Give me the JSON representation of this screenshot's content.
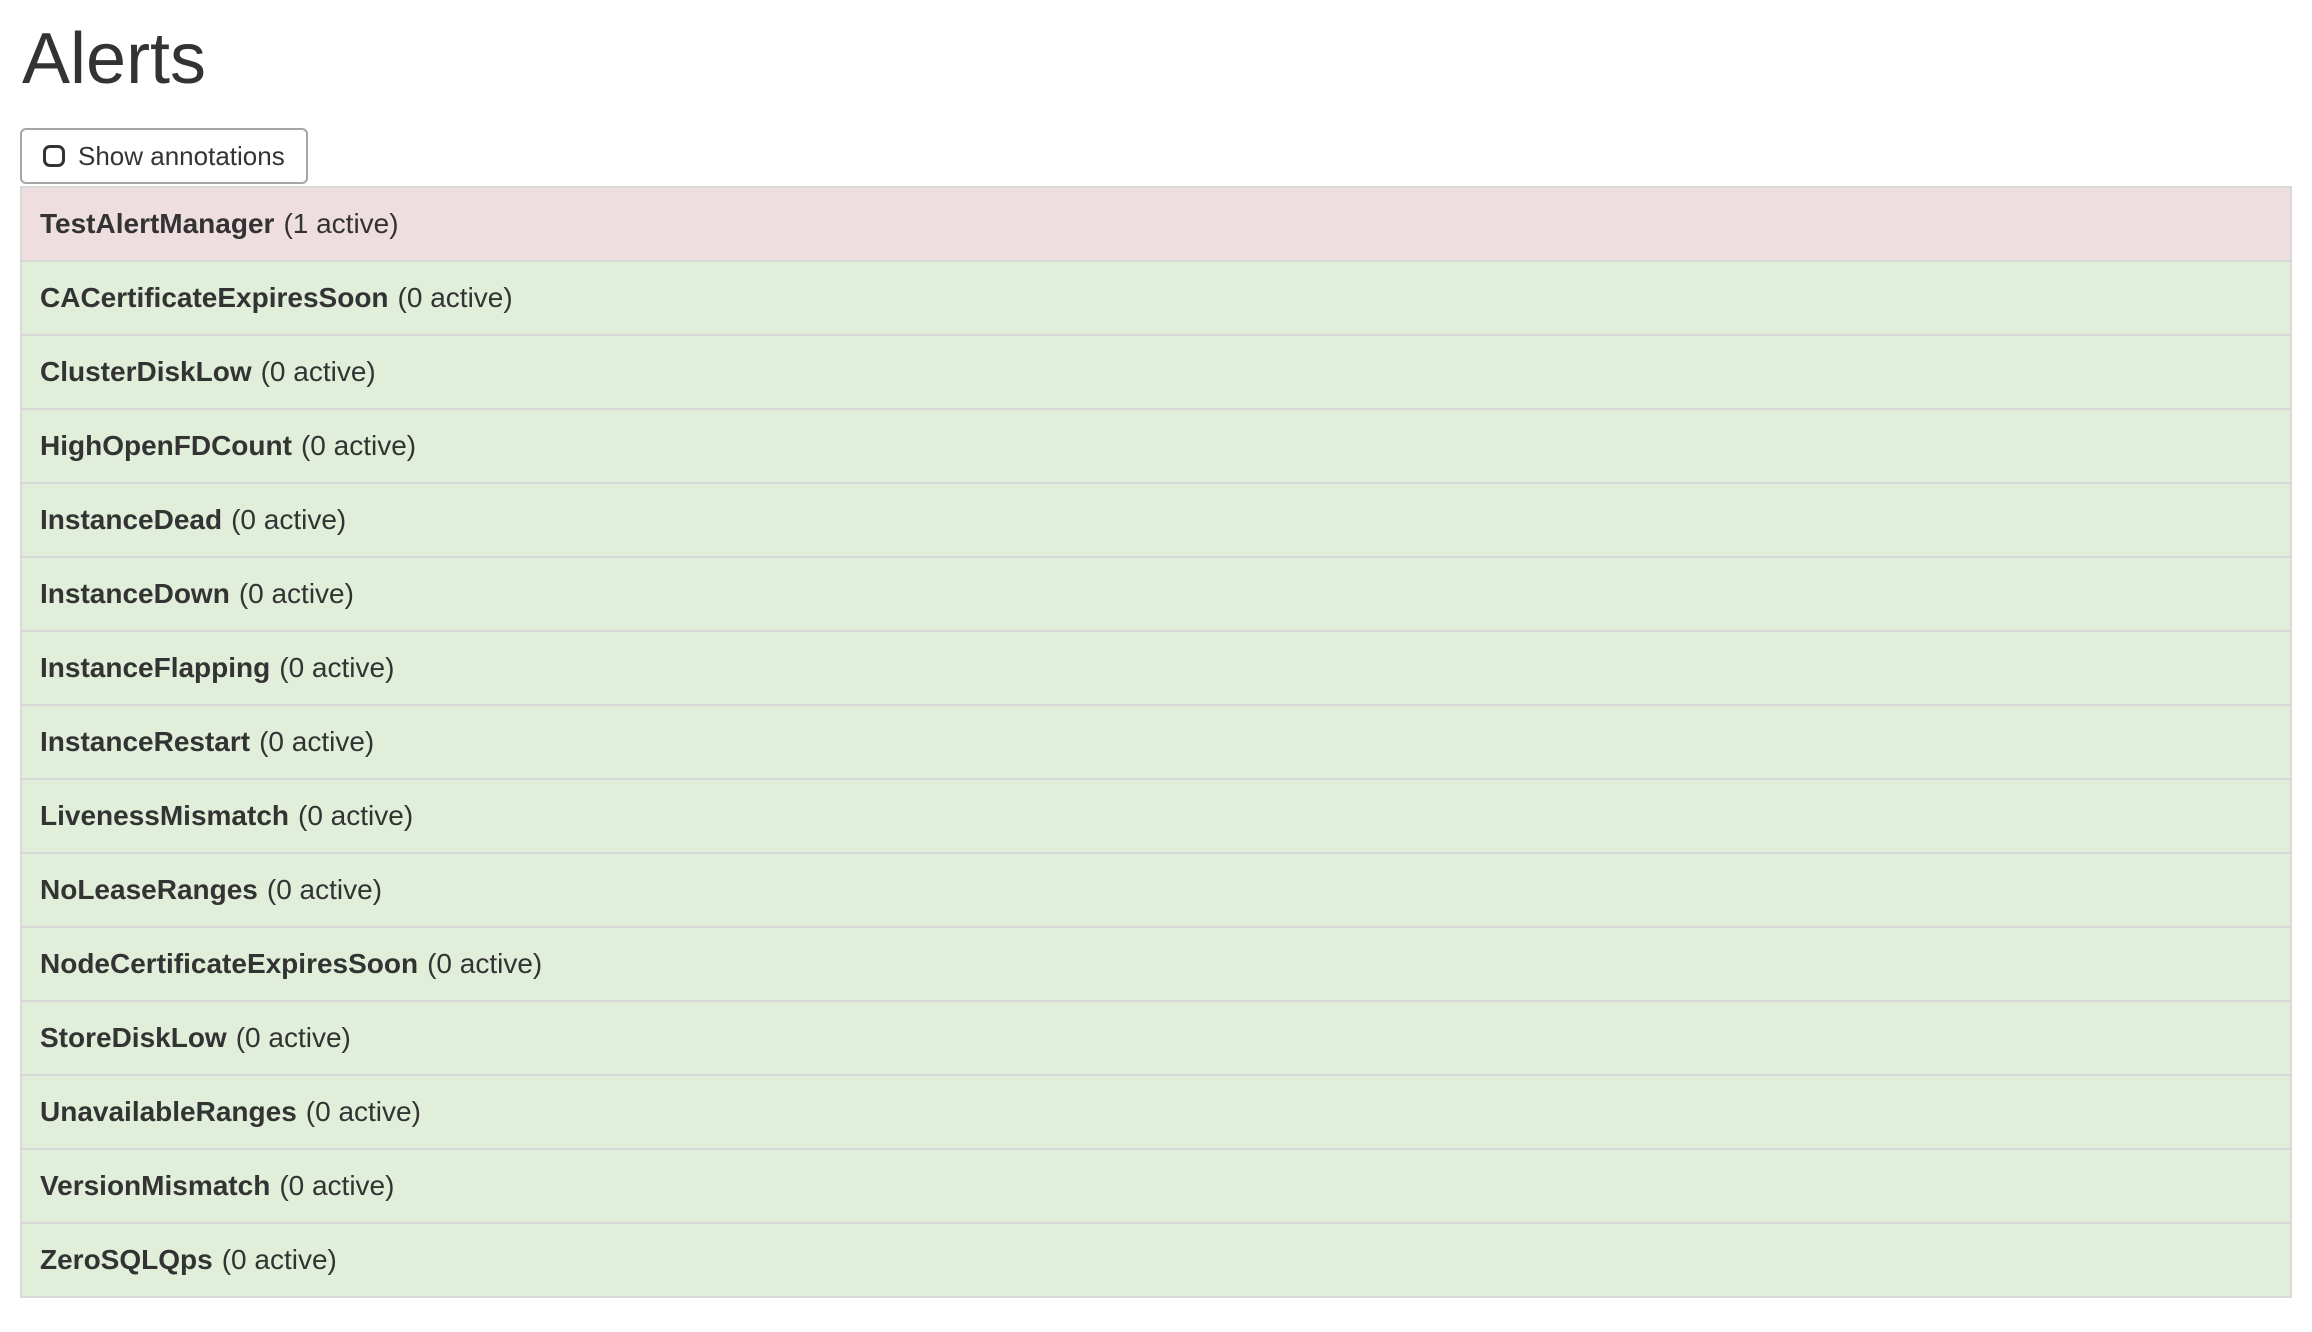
{
  "page": {
    "title": "Alerts"
  },
  "toolbar": {
    "show_annotations_label": "Show annotations",
    "show_annotations_checked": false
  },
  "colors": {
    "active_row_bg": "#efdee0",
    "inactive_row_bg": "#e0eeda",
    "row_border": "#d9d9d9",
    "button_border": "#a6a6a6",
    "text": "#333333"
  },
  "alerts": [
    {
      "name": "TestAlertManager",
      "active_count": 1,
      "count_label": "(1 active)",
      "state": "firing"
    },
    {
      "name": "CACertificateExpiresSoon",
      "active_count": 0,
      "count_label": "(0 active)",
      "state": "inactive"
    },
    {
      "name": "ClusterDiskLow",
      "active_count": 0,
      "count_label": "(0 active)",
      "state": "inactive"
    },
    {
      "name": "HighOpenFDCount",
      "active_count": 0,
      "count_label": "(0 active)",
      "state": "inactive"
    },
    {
      "name": "InstanceDead",
      "active_count": 0,
      "count_label": "(0 active)",
      "state": "inactive"
    },
    {
      "name": "InstanceDown",
      "active_count": 0,
      "count_label": "(0 active)",
      "state": "inactive"
    },
    {
      "name": "InstanceFlapping",
      "active_count": 0,
      "count_label": "(0 active)",
      "state": "inactive"
    },
    {
      "name": "InstanceRestart",
      "active_count": 0,
      "count_label": "(0 active)",
      "state": "inactive"
    },
    {
      "name": "LivenessMismatch",
      "active_count": 0,
      "count_label": "(0 active)",
      "state": "inactive"
    },
    {
      "name": "NoLeaseRanges",
      "active_count": 0,
      "count_label": "(0 active)",
      "state": "inactive"
    },
    {
      "name": "NodeCertificateExpiresSoon",
      "active_count": 0,
      "count_label": "(0 active)",
      "state": "inactive"
    },
    {
      "name": "StoreDiskLow",
      "active_count": 0,
      "count_label": "(0 active)",
      "state": "inactive"
    },
    {
      "name": "UnavailableRanges",
      "active_count": 0,
      "count_label": "(0 active)",
      "state": "inactive"
    },
    {
      "name": "VersionMismatch",
      "active_count": 0,
      "count_label": "(0 active)",
      "state": "inactive"
    },
    {
      "name": "ZeroSQLQps",
      "active_count": 0,
      "count_label": "(0 active)",
      "state": "inactive"
    }
  ]
}
